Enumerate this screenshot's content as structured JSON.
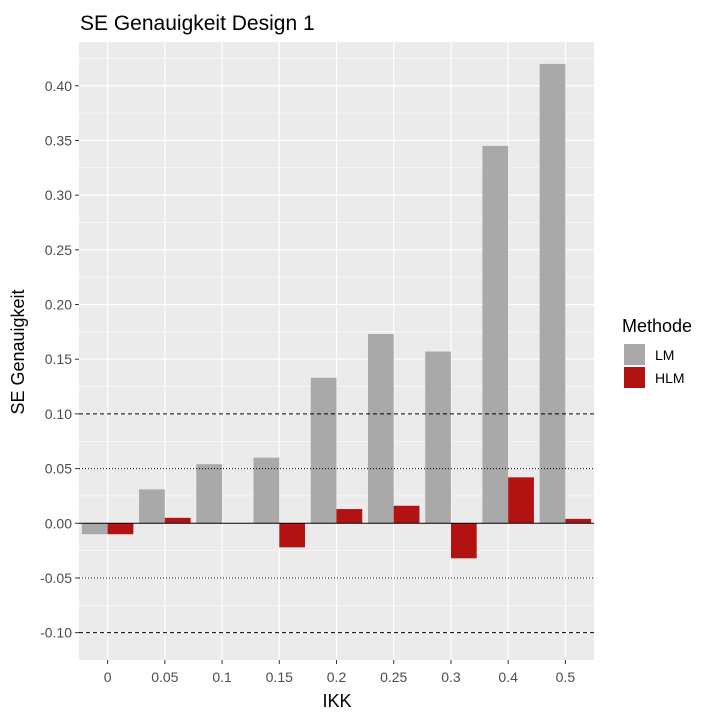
{
  "chart_data": {
    "type": "bar",
    "title": "SE Genauigkeit Design 1",
    "xlabel": "IKK",
    "ylabel": "SE Genauigkeit",
    "categories": [
      "0",
      "0.05",
      "0.1",
      "0.15",
      "0.2",
      "0.25",
      "0.3",
      "0.4",
      "0.5"
    ],
    "series": [
      {
        "name": "LM",
        "color": "#a9a9a9",
        "values": [
          -0.01,
          0.031,
          0.054,
          0.06,
          0.133,
          0.173,
          0.157,
          0.345,
          0.42
        ]
      },
      {
        "name": "HLM",
        "color": "#b31212",
        "values": [
          -0.01,
          0.005,
          0.0,
          -0.022,
          0.013,
          0.016,
          -0.032,
          0.042,
          0.004
        ]
      }
    ],
    "ylim": [
      -0.125,
      0.44
    ],
    "yticks": [
      "-0.10",
      "-0.05",
      "0.00",
      "0.05",
      "0.10",
      "0.15",
      "0.20",
      "0.25",
      "0.30",
      "0.35",
      "0.40"
    ],
    "reference_lines": [
      {
        "y": 0.1,
        "style": "dashed"
      },
      {
        "y": -0.1,
        "style": "dashed"
      },
      {
        "y": 0.05,
        "style": "dotted"
      },
      {
        "y": -0.05,
        "style": "dotted"
      },
      {
        "y": 0.0,
        "style": "solid"
      }
    ],
    "legend": {
      "title": "Methode",
      "position": "right"
    },
    "grid": true,
    "panel_background": "#ebebeb"
  }
}
